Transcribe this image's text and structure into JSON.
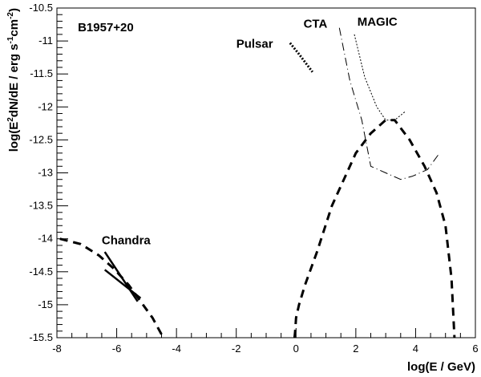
{
  "chart_data": {
    "type": "line",
    "title": "",
    "xlabel": "log(E / GeV)",
    "ylabel_parts": [
      "log(E",
      "2",
      "dN/dE / erg s",
      "-1",
      "cm",
      "-2",
      ")"
    ],
    "xlim": [
      -8,
      6
    ],
    "ylim": [
      -15.5,
      -10.5
    ],
    "xticks": [
      -8,
      -6,
      -4,
      -2,
      0,
      2,
      4,
      6
    ],
    "yticks": [
      -15.5,
      -15,
      -14.5,
      -14,
      -13.5,
      -13,
      -12.5,
      -12,
      -11.5,
      -11,
      -10.5
    ],
    "grid": false,
    "legend": "none",
    "annotations": [
      {
        "key": "source",
        "text": "B1957+20",
        "x": -7.3,
        "y": -10.85
      },
      {
        "key": "pulsar",
        "text": "Pulsar",
        "x": -2.0,
        "y": -11.1
      },
      {
        "key": "cta",
        "text": "CTA",
        "x": 0.25,
        "y": -10.8
      },
      {
        "key": "magic",
        "text": "MAGIC",
        "x": 2.05,
        "y": -10.77
      },
      {
        "key": "chandra",
        "text": "Chandra",
        "x": -6.5,
        "y": -14.08
      }
    ],
    "series": [
      {
        "key": "synchrotron",
        "style": "dashed-thick",
        "x": [
          -7.9,
          -7.2,
          -6.6,
          -6.1,
          -5.6,
          -5.2,
          -4.8,
          -4.5,
          -4.4
        ],
        "y": [
          -14.0,
          -14.08,
          -14.25,
          -14.45,
          -14.7,
          -14.95,
          -15.2,
          -15.45,
          -15.5
        ]
      },
      {
        "key": "chandra_spectrum_1",
        "style": "solid-thick",
        "x": [
          -6.4,
          -5.3
        ],
        "y": [
          -14.2,
          -14.95
        ]
      },
      {
        "key": "chandra_spectrum_2",
        "style": "solid-thick",
        "x": [
          -6.4,
          -5.2
        ],
        "y": [
          -14.47,
          -14.9
        ]
      },
      {
        "key": "pulsar",
        "style": "dotted-thick",
        "x": [
          -0.2,
          0.1,
          0.4,
          0.55
        ],
        "y": [
          -11.03,
          -11.2,
          -11.38,
          -11.47
        ]
      },
      {
        "key": "ic_spectrum",
        "style": "dashed-thick",
        "x": [
          -0.05,
          -0.03,
          0.0,
          0.1,
          0.3,
          0.7,
          1.2,
          2.0,
          2.5,
          3.0,
          3.3,
          3.8,
          4.3,
          4.7,
          5.0,
          5.2,
          5.3
        ],
        "y": [
          -15.5,
          -15.4,
          -15.2,
          -15.0,
          -14.7,
          -14.2,
          -13.5,
          -12.7,
          -12.4,
          -12.2,
          -12.2,
          -12.5,
          -12.9,
          -13.3,
          -13.8,
          -14.6,
          -15.5
        ]
      },
      {
        "key": "cta_sensitivity",
        "style": "dashdot-thin",
        "x": [
          1.45,
          1.8,
          2.2,
          2.5,
          3.0,
          3.5,
          3.9,
          4.4,
          4.8
        ],
        "y": [
          -10.8,
          -11.6,
          -12.2,
          -12.9,
          -13.0,
          -13.1,
          -13.05,
          -12.95,
          -12.7
        ]
      },
      {
        "key": "magic_sensitivity",
        "style": "dotted-thin",
        "x": [
          1.95,
          2.3,
          2.7,
          3.0,
          3.3,
          3.65
        ],
        "y": [
          -10.9,
          -11.55,
          -12.0,
          -12.2,
          -12.2,
          -12.07
        ]
      }
    ]
  }
}
